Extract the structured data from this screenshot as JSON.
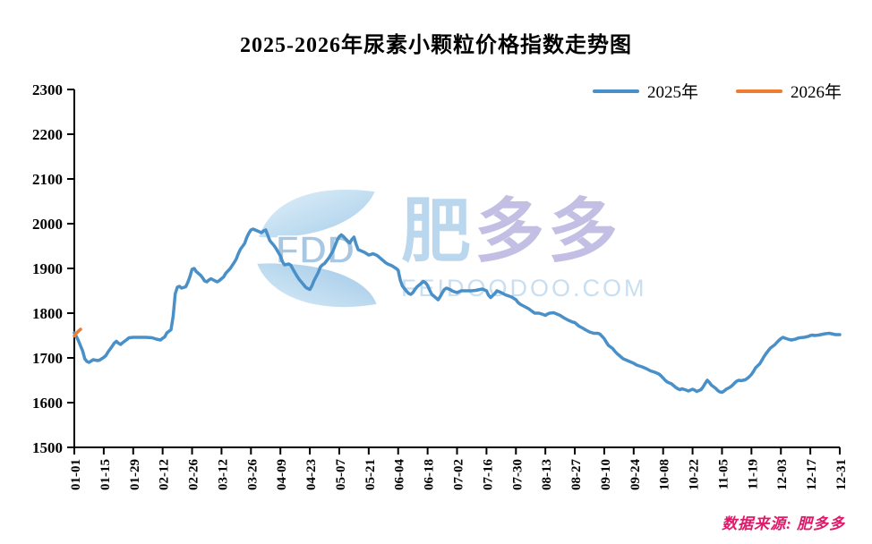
{
  "title": "2025-2026年尿素小颗粒价格指数走势图",
  "legend": [
    {
      "label": "2025年",
      "color": "#4a90c8"
    },
    {
      "label": "2026年",
      "color": "#ed7d31"
    }
  ],
  "watermark": {
    "logo_text": "FDD",
    "brand_1": "肥",
    "brand_2": "多多",
    "site": "FEIDOODOO.COM",
    "brand_color_1": "#a9cde9",
    "brand_color_2": "#b3aedd",
    "site_color": "#b9d6ee"
  },
  "source": "数据来源: 肥多多",
  "source_color": "#e0196a",
  "chart_data": {
    "type": "line",
    "title": "2025-2026年尿素小颗粒价格指数走势图",
    "xlabel": "",
    "ylabel": "",
    "ylim": [
      1500,
      2300
    ],
    "yticks": [
      1500,
      1600,
      1700,
      1800,
      1900,
      2000,
      2100,
      2200,
      2300
    ],
    "xticks": [
      "01-01",
      "01-15",
      "01-29",
      "02-12",
      "02-26",
      "03-12",
      "03-26",
      "04-09",
      "04-23",
      "05-07",
      "05-21",
      "06-04",
      "06-18",
      "07-02",
      "07-16",
      "07-30",
      "08-13",
      "08-27",
      "09-10",
      "09-24",
      "10-08",
      "10-22",
      "11-05",
      "11-19",
      "12-03",
      "12-17",
      "12-31"
    ],
    "grid": false,
    "legend_position": "top-right",
    "series": [
      {
        "name": "2025年",
        "color": "#4a90c8",
        "points": [
          [
            "01-01",
            1756
          ],
          [
            "01-02",
            1748
          ],
          [
            "01-03",
            1738
          ],
          [
            "01-05",
            1715
          ],
          [
            "01-06",
            1698
          ],
          [
            "01-07",
            1692
          ],
          [
            "01-08",
            1690
          ],
          [
            "01-09",
            1693
          ],
          [
            "01-10",
            1696
          ],
          [
            "01-12",
            1694
          ],
          [
            "01-13",
            1695
          ],
          [
            "01-14",
            1698
          ],
          [
            "01-15",
            1701
          ],
          [
            "01-16",
            1705
          ],
          [
            "01-17",
            1713
          ],
          [
            "01-19",
            1726
          ],
          [
            "01-20",
            1733
          ],
          [
            "01-21",
            1737
          ],
          [
            "01-22",
            1733
          ],
          [
            "01-23",
            1730
          ],
          [
            "01-24",
            1734
          ],
          [
            "01-26",
            1741
          ],
          [
            "01-27",
            1745
          ],
          [
            "01-29",
            1746
          ],
          [
            "02-01",
            1746
          ],
          [
            "02-04",
            1746
          ],
          [
            "02-07",
            1745
          ],
          [
            "02-09",
            1742
          ],
          [
            "02-11",
            1740
          ],
          [
            "02-12",
            1744
          ],
          [
            "02-13",
            1747
          ],
          [
            "02-14",
            1756
          ],
          [
            "02-16",
            1763
          ],
          [
            "02-17",
            1793
          ],
          [
            "02-18",
            1843
          ],
          [
            "02-19",
            1858
          ],
          [
            "02-20",
            1860
          ],
          [
            "02-21",
            1856
          ],
          [
            "02-23",
            1859
          ],
          [
            "02-24",
            1869
          ],
          [
            "02-25",
            1882
          ],
          [
            "02-26",
            1898
          ],
          [
            "02-27",
            1900
          ],
          [
            "02-28",
            1893
          ],
          [
            "03-02",
            1885
          ],
          [
            "03-03",
            1879
          ],
          [
            "03-04",
            1872
          ],
          [
            "03-05",
            1870
          ],
          [
            "03-06",
            1874
          ],
          [
            "03-07",
            1877
          ],
          [
            "03-09",
            1872
          ],
          [
            "03-10",
            1870
          ],
          [
            "03-11",
            1873
          ],
          [
            "03-12",
            1877
          ],
          [
            "03-13",
            1881
          ],
          [
            "03-14",
            1889
          ],
          [
            "03-16",
            1899
          ],
          [
            "03-17",
            1906
          ],
          [
            "03-18",
            1913
          ],
          [
            "03-19",
            1921
          ],
          [
            "03-20",
            1933
          ],
          [
            "03-21",
            1943
          ],
          [
            "03-23",
            1956
          ],
          [
            "03-24",
            1969
          ],
          [
            "03-25",
            1979
          ],
          [
            "03-26",
            1986
          ],
          [
            "03-27",
            1988
          ],
          [
            "03-28",
            1986
          ],
          [
            "03-30",
            1982
          ],
          [
            "03-31",
            1980
          ],
          [
            "04-01",
            1984
          ],
          [
            "04-02",
            1986
          ],
          [
            "04-03",
            1974
          ],
          [
            "04-04",
            1962
          ],
          [
            "04-06",
            1951
          ],
          [
            "04-07",
            1944
          ],
          [
            "04-08",
            1936
          ],
          [
            "04-09",
            1928
          ],
          [
            "04-10",
            1915
          ],
          [
            "04-11",
            1908
          ],
          [
            "04-13",
            1910
          ],
          [
            "04-14",
            1907
          ],
          [
            "04-15",
            1898
          ],
          [
            "04-16",
            1890
          ],
          [
            "04-17",
            1882
          ],
          [
            "04-18",
            1875
          ],
          [
            "04-20",
            1864
          ],
          [
            "04-21",
            1858
          ],
          [
            "04-22",
            1855
          ],
          [
            "04-23",
            1853
          ],
          [
            "04-24",
            1861
          ],
          [
            "04-25",
            1873
          ],
          [
            "04-27",
            1891
          ],
          [
            "04-28",
            1903
          ],
          [
            "04-29",
            1908
          ],
          [
            "04-30",
            1911
          ],
          [
            "05-02",
            1923
          ],
          [
            "05-04",
            1939
          ],
          [
            "05-05",
            1951
          ],
          [
            "05-06",
            1963
          ],
          [
            "05-07",
            1971
          ],
          [
            "05-08",
            1975
          ],
          [
            "05-09",
            1971
          ],
          [
            "05-11",
            1961
          ],
          [
            "05-12",
            1957
          ],
          [
            "05-13",
            1965
          ],
          [
            "05-14",
            1970
          ],
          [
            "05-15",
            1954
          ],
          [
            "05-16",
            1942
          ],
          [
            "05-18",
            1938
          ],
          [
            "05-19",
            1936
          ],
          [
            "05-20",
            1933
          ],
          [
            "05-21",
            1930
          ],
          [
            "05-22",
            1931
          ],
          [
            "05-23",
            1933
          ],
          [
            "05-25",
            1929
          ],
          [
            "05-26",
            1925
          ],
          [
            "05-27",
            1921
          ],
          [
            "05-28",
            1917
          ],
          [
            "05-29",
            1913
          ],
          [
            "05-30",
            1910
          ],
          [
            "06-01",
            1906
          ],
          [
            "06-02",
            1903
          ],
          [
            "06-03",
            1900
          ],
          [
            "06-04",
            1896
          ],
          [
            "06-05",
            1874
          ],
          [
            "06-06",
            1861
          ],
          [
            "06-08",
            1849
          ],
          [
            "06-09",
            1844
          ],
          [
            "06-10",
            1842
          ],
          [
            "06-11",
            1846
          ],
          [
            "06-12",
            1853
          ],
          [
            "06-13",
            1859
          ],
          [
            "06-15",
            1867
          ],
          [
            "06-16",
            1871
          ],
          [
            "06-17",
            1868
          ],
          [
            "06-18",
            1862
          ],
          [
            "06-19",
            1851
          ],
          [
            "06-20",
            1842
          ],
          [
            "06-22",
            1834
          ],
          [
            "06-23",
            1830
          ],
          [
            "06-24",
            1837
          ],
          [
            "06-25",
            1846
          ],
          [
            "06-26",
            1853
          ],
          [
            "06-27",
            1856
          ],
          [
            "06-29",
            1852
          ],
          [
            "06-30",
            1849
          ],
          [
            "07-02",
            1846
          ],
          [
            "07-04",
            1850
          ],
          [
            "07-07",
            1850
          ],
          [
            "07-09",
            1850
          ],
          [
            "07-11",
            1851
          ],
          [
            "07-14",
            1854
          ],
          [
            "07-16",
            1850
          ],
          [
            "07-17",
            1840
          ],
          [
            "07-18",
            1835
          ],
          [
            "07-20",
            1844
          ],
          [
            "07-21",
            1850
          ],
          [
            "07-23",
            1846
          ],
          [
            "07-25",
            1841
          ],
          [
            "07-28",
            1836
          ],
          [
            "07-30",
            1830
          ],
          [
            "07-31",
            1824
          ],
          [
            "08-01",
            1820
          ],
          [
            "08-03",
            1815
          ],
          [
            "08-05",
            1810
          ],
          [
            "08-07",
            1803
          ],
          [
            "08-08",
            1800
          ],
          [
            "08-10",
            1800
          ],
          [
            "08-12",
            1797
          ],
          [
            "08-13",
            1795
          ],
          [
            "08-14",
            1798
          ],
          [
            "08-15",
            1800
          ],
          [
            "08-17",
            1801
          ],
          [
            "08-18",
            1799
          ],
          [
            "08-20",
            1795
          ],
          [
            "08-22",
            1789
          ],
          [
            "08-24",
            1784
          ],
          [
            "08-26",
            1780
          ],
          [
            "08-27",
            1779
          ],
          [
            "08-29",
            1771
          ],
          [
            "08-31",
            1766
          ],
          [
            "09-01",
            1763
          ],
          [
            "09-03",
            1758
          ],
          [
            "09-05",
            1755
          ],
          [
            "09-07",
            1755
          ],
          [
            "09-08",
            1753
          ],
          [
            "09-09",
            1748
          ],
          [
            "09-10",
            1743
          ],
          [
            "09-11",
            1735
          ],
          [
            "09-12",
            1728
          ],
          [
            "09-14",
            1721
          ],
          [
            "09-15",
            1715
          ],
          [
            "09-16",
            1710
          ],
          [
            "09-17",
            1706
          ],
          [
            "09-18",
            1702
          ],
          [
            "09-19",
            1698
          ],
          [
            "09-21",
            1694
          ],
          [
            "09-22",
            1692
          ],
          [
            "09-23",
            1690
          ],
          [
            "09-24",
            1688
          ],
          [
            "09-25",
            1685
          ],
          [
            "09-26",
            1683
          ],
          [
            "09-28",
            1680
          ],
          [
            "09-30",
            1676
          ],
          [
            "10-02",
            1671
          ],
          [
            "10-04",
            1668
          ],
          [
            "10-06",
            1664
          ],
          [
            "10-07",
            1660
          ],
          [
            "10-08",
            1655
          ],
          [
            "10-09",
            1650
          ],
          [
            "10-10",
            1646
          ],
          [
            "10-12",
            1642
          ],
          [
            "10-13",
            1638
          ],
          [
            "10-14",
            1634
          ],
          [
            "10-15",
            1631
          ],
          [
            "10-16",
            1629
          ],
          [
            "10-17",
            1631
          ],
          [
            "10-19",
            1628
          ],
          [
            "10-20",
            1626
          ],
          [
            "10-21",
            1628
          ],
          [
            "10-22",
            1630
          ],
          [
            "10-23",
            1628
          ],
          [
            "10-24",
            1625
          ],
          [
            "10-26",
            1629
          ],
          [
            "10-27",
            1635
          ],
          [
            "10-28",
            1643
          ],
          [
            "10-29",
            1650
          ],
          [
            "10-30",
            1645
          ],
          [
            "10-31",
            1639
          ],
          [
            "11-02",
            1632
          ],
          [
            "11-03",
            1627
          ],
          [
            "11-04",
            1624
          ],
          [
            "11-05",
            1623
          ],
          [
            "11-06",
            1626
          ],
          [
            "11-07",
            1630
          ],
          [
            "11-09",
            1635
          ],
          [
            "11-10",
            1639
          ],
          [
            "11-11",
            1644
          ],
          [
            "11-12",
            1648
          ],
          [
            "11-13",
            1650
          ],
          [
            "11-14",
            1649
          ],
          [
            "11-16",
            1651
          ],
          [
            "11-17",
            1654
          ],
          [
            "11-18",
            1658
          ],
          [
            "11-19",
            1663
          ],
          [
            "11-20",
            1670
          ],
          [
            "11-21",
            1678
          ],
          [
            "11-23",
            1687
          ],
          [
            "11-24",
            1695
          ],
          [
            "11-25",
            1703
          ],
          [
            "11-26",
            1710
          ],
          [
            "11-27",
            1716
          ],
          [
            "11-28",
            1722
          ],
          [
            "11-30",
            1729
          ],
          [
            "12-01",
            1734
          ],
          [
            "12-02",
            1739
          ],
          [
            "12-03",
            1743
          ],
          [
            "12-04",
            1746
          ],
          [
            "12-05",
            1744
          ],
          [
            "12-07",
            1741
          ],
          [
            "12-08",
            1740
          ],
          [
            "12-09",
            1741
          ],
          [
            "12-10",
            1742
          ],
          [
            "12-11",
            1744
          ],
          [
            "12-12",
            1745
          ],
          [
            "12-14",
            1746
          ],
          [
            "12-16",
            1748
          ],
          [
            "12-17",
            1750
          ],
          [
            "12-18",
            1751
          ],
          [
            "12-19",
            1750
          ],
          [
            "12-21",
            1751
          ],
          [
            "12-22",
            1752
          ],
          [
            "12-24",
            1754
          ],
          [
            "12-26",
            1755
          ],
          [
            "12-28",
            1753
          ],
          [
            "12-29",
            1752
          ],
          [
            "12-31",
            1752
          ]
        ]
      },
      {
        "name": "2026年",
        "color": "#ed7d31",
        "points": [
          [
            "01-01",
            1749
          ],
          [
            "01-02",
            1755
          ],
          [
            "01-03",
            1760
          ],
          [
            "01-04",
            1764
          ]
        ]
      }
    ]
  }
}
